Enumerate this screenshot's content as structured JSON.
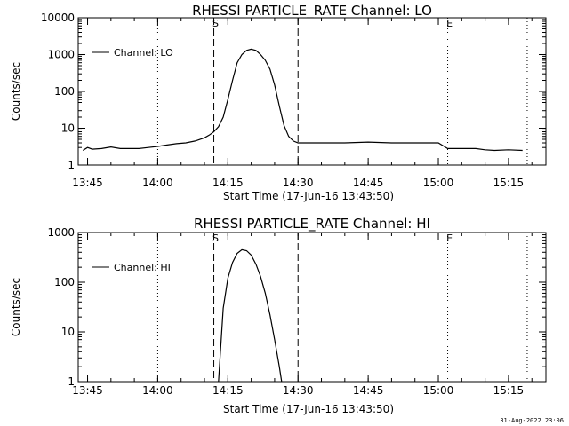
{
  "chart_data": [
    {
      "type": "line",
      "title": "RHESSI PARTICLE_RATE Channel: LO",
      "xlabel": "Start Time (17-Jun-16 13:43:50)",
      "ylabel": "Counts/sec",
      "yscale": "log",
      "xlim": [
        "13:43",
        "15:23"
      ],
      "ylim": [
        1,
        10000
      ],
      "xticks": [
        "13:45",
        "14:00",
        "14:15",
        "14:30",
        "14:45",
        "15:00",
        "15:15"
      ],
      "yticks": [
        "1",
        "10",
        "100",
        "1000",
        "10000"
      ],
      "legend": {
        "position": "top-left",
        "entries": [
          "Channel: LO"
        ]
      },
      "markers": [
        {
          "label": "",
          "time": "13:43",
          "style": "dotted"
        },
        {
          "label": "",
          "time": "14:00",
          "style": "dotted"
        },
        {
          "label": "S",
          "time": "14:12",
          "style": "dashed"
        },
        {
          "label": "",
          "time": "14:30",
          "style": "dashed"
        },
        {
          "label": "E",
          "time": "15:02",
          "style": "dotted"
        },
        {
          "label": "",
          "time": "15:19",
          "style": "dotted"
        }
      ],
      "series": [
        {
          "name": "Channel: LO",
          "x": [
            "13:44",
            "13:45",
            "13:46",
            "13:48",
            "13:50",
            "13:52",
            "13:54",
            "13:56",
            "13:58",
            "14:00",
            "14:02",
            "14:04",
            "14:06",
            "14:08",
            "14:10",
            "14:11",
            "14:12",
            "14:13",
            "14:14",
            "14:15",
            "14:16",
            "14:17",
            "14:18",
            "14:19",
            "14:20",
            "14:21",
            "14:22",
            "14:23",
            "14:24",
            "14:25",
            "14:26",
            "14:27",
            "14:28",
            "14:29",
            "14:30",
            "14:32",
            "14:35",
            "14:40",
            "14:45",
            "14:50",
            "14:55",
            "15:00",
            "15:02",
            "15:05",
            "15:08",
            "15:10",
            "15:12",
            "15:15",
            "15:18"
          ],
          "values": [
            2.5,
            3,
            2.7,
            2.8,
            3.1,
            2.8,
            2.8,
            2.8,
            3,
            3.2,
            3.5,
            3.8,
            4,
            4.5,
            5.5,
            6.5,
            8,
            11,
            20,
            60,
            200,
            600,
            1000,
            1300,
            1400,
            1300,
            1000,
            700,
            400,
            150,
            40,
            12,
            6,
            4.5,
            4,
            4,
            4,
            4,
            4.2,
            4,
            4,
            4,
            2.8,
            2.8,
            2.8,
            2.6,
            2.5,
            2.6,
            2.5
          ]
        }
      ]
    },
    {
      "type": "line",
      "title": "RHESSI PARTICLE_RATE Channel: HI",
      "xlabel": "Start Time (17-Jun-16 13:43:50)",
      "ylabel": "Counts/sec",
      "yscale": "log",
      "xlim": [
        "13:43",
        "15:23"
      ],
      "ylim": [
        1,
        1000
      ],
      "xticks": [
        "13:45",
        "14:00",
        "14:15",
        "14:30",
        "14:45",
        "15:00",
        "15:15"
      ],
      "yticks": [
        "1",
        "10",
        "100",
        "1000"
      ],
      "legend": {
        "position": "top-left",
        "entries": [
          "Channel: HI"
        ]
      },
      "markers": [
        {
          "label": "",
          "time": "13:43",
          "style": "dotted"
        },
        {
          "label": "",
          "time": "14:00",
          "style": "dotted"
        },
        {
          "label": "S",
          "time": "14:12",
          "style": "dashed"
        },
        {
          "label": "",
          "time": "14:30",
          "style": "dashed"
        },
        {
          "label": "E",
          "time": "15:02",
          "style": "dotted"
        },
        {
          "label": "",
          "time": "15:19",
          "style": "dotted"
        }
      ],
      "series": [
        {
          "name": "Channel: HI",
          "x": [
            "14:13",
            "14:14",
            "14:15",
            "14:16",
            "14:17",
            "14:18",
            "14:19",
            "14:20",
            "14:21",
            "14:22",
            "14:23",
            "14:24",
            "14:25",
            "14:26",
            "14:26.5"
          ],
          "values": [
            1,
            30,
            120,
            250,
            380,
            450,
            430,
            350,
            230,
            130,
            60,
            22,
            7,
            2,
            1
          ]
        }
      ]
    }
  ],
  "footer": {
    "timestamp": "31-Aug-2022 23:06"
  }
}
